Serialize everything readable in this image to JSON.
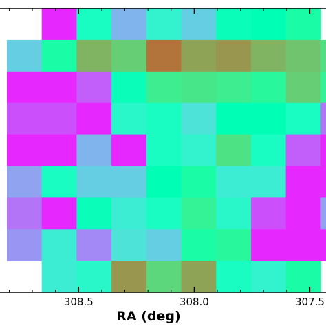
{
  "chart_data": {
    "type": "heatmap",
    "xlabel": "RA (deg)",
    "x_axis": {
      "direction": "decreasing",
      "xlim": [
        308.84,
        307.43
      ],
      "ticks": [
        308.5,
        308.0,
        307.5
      ],
      "tick_labels": [
        "308.5",
        "308.0",
        "307.5"
      ]
    },
    "grid": false,
    "colormap": "rainbow",
    "rows": [
      [
        null,
        0.05,
        0.45,
        0.25,
        0.4,
        0.3,
        0.48,
        0.5,
        0.55,
        null
      ],
      [
        0.3,
        0.55,
        0.75,
        0.7,
        0.85,
        0.78,
        0.8,
        0.75,
        0.72,
        0.66
      ],
      [
        0.05,
        0.05,
        0.12,
        0.48,
        0.62,
        0.64,
        0.62,
        0.58,
        0.7,
        0.6
      ],
      [
        0.1,
        0.1,
        0.05,
        0.42,
        0.45,
        0.35,
        0.5,
        0.5,
        0.45,
        0.15
      ],
      [
        0.05,
        0.05,
        0.25,
        0.05,
        0.45,
        0.4,
        0.65,
        0.45,
        0.12,
        0.05
      ],
      [
        0.22,
        0.45,
        0.3,
        0.3,
        0.5,
        0.55,
        0.38,
        0.38,
        0.05,
        0.05
      ],
      [
        0.15,
        0.05,
        0.48,
        0.38,
        0.45,
        0.6,
        0.42,
        0.1,
        0.05,
        0.22
      ],
      [
        0.2,
        0.38,
        0.18,
        0.35,
        0.3,
        0.55,
        0.58,
        0.05,
        0.05,
        0.05
      ],
      [
        null,
        0.38,
        0.42,
        0.8,
        0.68,
        0.78,
        0.45,
        0.4,
        0.55,
        null
      ]
    ]
  }
}
